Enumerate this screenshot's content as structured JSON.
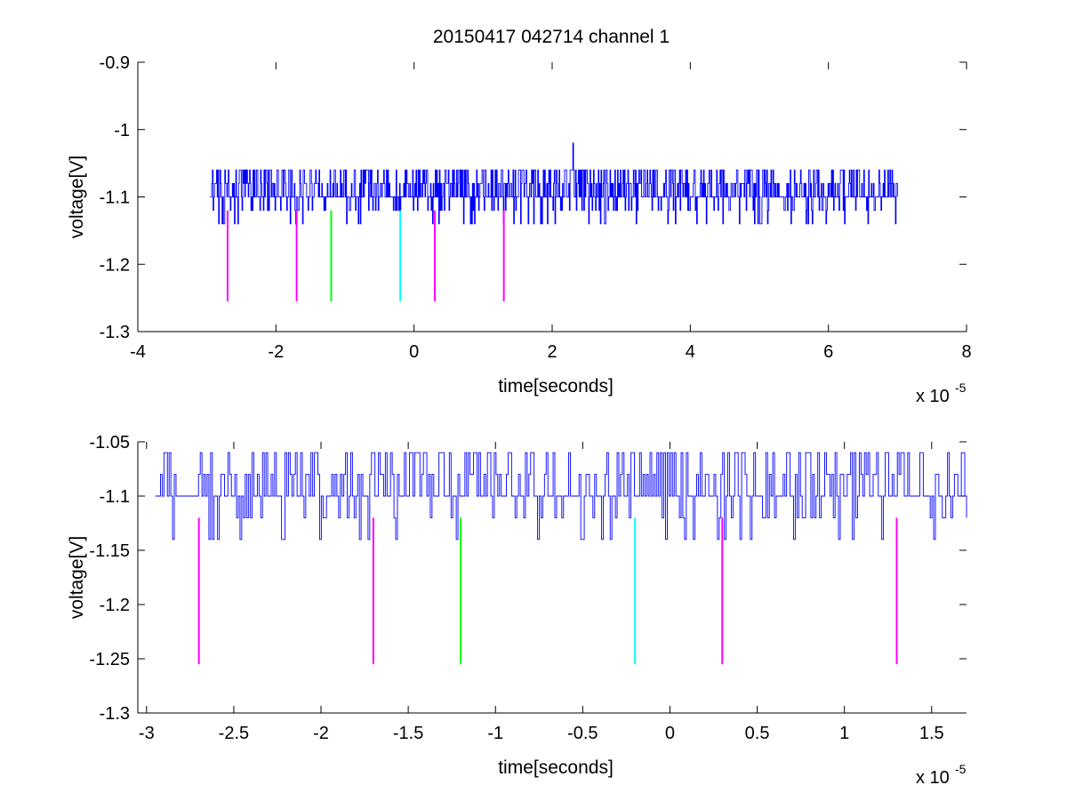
{
  "figure": {
    "title": "20150417 042714 channel 1"
  },
  "chart_data": [
    {
      "type": "line",
      "title": "20150417 042714 channel 1",
      "xlabel": "time[seconds]",
      "ylabel": "voltage[V]",
      "x_multiplier_label": "x 10",
      "x_multiplier_exp": "-5",
      "xlim": [
        -4e-05,
        8e-05
      ],
      "ylim": [
        -1.3,
        -0.9
      ],
      "x_ticks": [
        -4,
        -2,
        0,
        2,
        4,
        6,
        8
      ],
      "x_tick_labels": [
        "-4",
        "-2",
        "0",
        "2",
        "4",
        "6",
        "8"
      ],
      "y_ticks": [
        -1.3,
        -1.2,
        -1.1,
        -1,
        -0.9
      ],
      "y_tick_labels": [
        "-1.3",
        "-1.2",
        "-1.1",
        "-1",
        "-0.9"
      ],
      "grid": false,
      "series": [
        {
          "color": "#0000ff",
          "x_start": -2.95e-05,
          "x_end": 7e-05,
          "points": 1000,
          "levels": [
            -1.06,
            -1.08,
            -1.1,
            -1.12,
            -1.14
          ],
          "baseline": -1.1,
          "spike": {
            "x": 2.3e-05,
            "y": -1.02
          }
        }
      ],
      "markers": [
        {
          "x": -2.7e-05,
          "y1": -1.12,
          "y2": -1.255,
          "color": "#ff00ff"
        },
        {
          "x": -1.7e-05,
          "y1": -1.12,
          "y2": -1.255,
          "color": "#ff00ff"
        },
        {
          "x": -1.2e-05,
          "y1": -1.12,
          "y2": -1.255,
          "color": "#00ff00"
        },
        {
          "x": -2e-06,
          "y1": -1.12,
          "y2": -1.255,
          "color": "#00ffff"
        },
        {
          "x": 3e-06,
          "y1": -1.12,
          "y2": -1.255,
          "color": "#ff00ff"
        },
        {
          "x": 1.3e-05,
          "y1": -1.12,
          "y2": -1.255,
          "color": "#ff00ff"
        }
      ]
    },
    {
      "type": "line",
      "title": "",
      "xlabel": "time[seconds]",
      "ylabel": "voltage[V]",
      "x_multiplier_label": "x 10",
      "x_multiplier_exp": "-5",
      "xlim": [
        -3.05e-05,
        1.7e-05
      ],
      "ylim": [
        -1.3,
        -1.05
      ],
      "x_ticks": [
        -3,
        -2.5,
        -2,
        -1.5,
        -1,
        -0.5,
        0,
        0.5,
        1,
        1.5
      ],
      "x_tick_labels": [
        "-3",
        "-2.5",
        "-2",
        "-1.5",
        "-1",
        "-0.5",
        "0",
        "0.5",
        "1",
        "1.5"
      ],
      "y_ticks": [
        -1.3,
        -1.25,
        -1.2,
        -1.15,
        -1.1,
        -1.05
      ],
      "y_tick_labels": [
        "-1.3",
        "-1.25",
        "-1.2",
        "-1.15",
        "-1.1",
        "-1.05"
      ],
      "grid": false,
      "series": [
        {
          "color": "#0000ff",
          "x_start": -2.95e-05,
          "x_end": 1.7e-05,
          "points": 470,
          "levels": [
            -1.06,
            -1.08,
            -1.1,
            -1.12,
            -1.14
          ],
          "baseline": -1.1
        }
      ],
      "markers": [
        {
          "x": -2.7e-05,
          "y1": -1.12,
          "y2": -1.255,
          "color": "#ff00ff"
        },
        {
          "x": -1.7e-05,
          "y1": -1.12,
          "y2": -1.255,
          "color": "#ff00ff"
        },
        {
          "x": -1.2e-05,
          "y1": -1.12,
          "y2": -1.255,
          "color": "#00ff00"
        },
        {
          "x": -2e-06,
          "y1": -1.12,
          "y2": -1.255,
          "color": "#00ffff"
        },
        {
          "x": 3e-06,
          "y1": -1.12,
          "y2": -1.255,
          "color": "#ff00ff"
        },
        {
          "x": 1.3e-05,
          "y1": -1.12,
          "y2": -1.255,
          "color": "#ff00ff"
        }
      ]
    }
  ]
}
